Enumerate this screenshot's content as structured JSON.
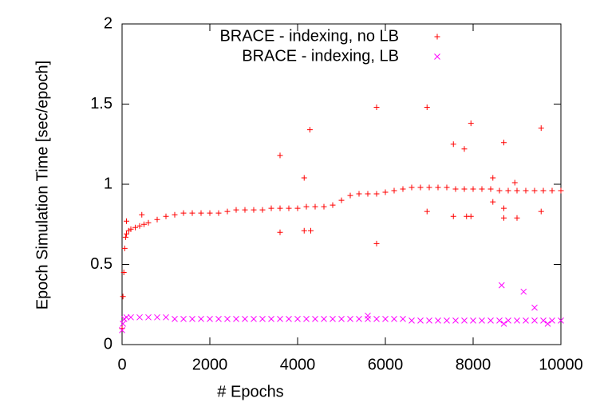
{
  "chart_data": {
    "type": "scatter",
    "x_label": "# Epochs",
    "y_label": "Epoch Simulation Time [sec/epoch]",
    "xlim": [
      0,
      10000
    ],
    "xticks": [
      0,
      2000,
      4000,
      6000,
      8000,
      10000
    ],
    "ylim": [
      0,
      2
    ],
    "yticks": [
      0,
      0.5,
      1,
      1.5,
      2
    ],
    "legend": "top-right",
    "series": [
      {
        "name": "BRACE - indexing, no LB",
        "color": "#ff0000",
        "marker": "plus",
        "x": [
          0,
          20,
          40,
          60,
          80,
          100,
          150,
          200,
          300,
          400,
          500,
          600,
          800,
          1000,
          1200,
          1400,
          1600,
          1800,
          2000,
          2200,
          2400,
          2600,
          2800,
          3000,
          3200,
          3400,
          3600,
          3800,
          4000,
          4200,
          4400,
          4600,
          4800,
          5000,
          5200,
          5400,
          5600,
          5800,
          6000,
          6200,
          6400,
          6600,
          6800,
          7000,
          7200,
          7400,
          7600,
          7800,
          8000,
          8200,
          8400,
          8600,
          8800,
          9000,
          9200,
          9400,
          9600,
          9800,
          10000,
          100,
          450,
          3600,
          3600,
          4150,
          4150,
          4300,
          4280,
          5800,
          5800,
          6950,
          6950,
          7550,
          7550,
          7800,
          7850,
          7950,
          7950,
          8450,
          8450,
          8700,
          8700,
          8700,
          8950,
          9000,
          9550,
          9550
        ],
        "values": [
          0.1,
          0.3,
          0.45,
          0.6,
          0.67,
          0.69,
          0.71,
          0.72,
          0.73,
          0.74,
          0.75,
          0.76,
          0.78,
          0.8,
          0.81,
          0.82,
          0.82,
          0.82,
          0.82,
          0.82,
          0.83,
          0.84,
          0.84,
          0.84,
          0.84,
          0.85,
          0.85,
          0.85,
          0.85,
          0.86,
          0.86,
          0.86,
          0.87,
          0.9,
          0.93,
          0.94,
          0.94,
          0.94,
          0.95,
          0.96,
          0.97,
          0.98,
          0.98,
          0.98,
          0.98,
          0.98,
          0.97,
          0.97,
          0.97,
          0.97,
          0.97,
          0.96,
          0.96,
          0.96,
          0.96,
          0.96,
          0.96,
          0.96,
          0.96,
          0.77,
          0.81,
          1.18,
          0.7,
          1.04,
          0.71,
          0.71,
          1.34,
          1.48,
          0.63,
          1.48,
          0.83,
          1.25,
          0.8,
          1.22,
          0.8,
          1.38,
          0.8,
          1.04,
          0.89,
          1.26,
          0.79,
          0.85,
          1.01,
          0.79,
          1.35,
          0.83
        ]
      },
      {
        "name": "BRACE - indexing, LB",
        "color": "#ff00ff",
        "marker": "cross",
        "x": [
          0,
          20,
          50,
          100,
          200,
          400,
          600,
          800,
          1000,
          1200,
          1400,
          1600,
          1800,
          2000,
          2200,
          2400,
          2600,
          2800,
          3000,
          3200,
          3400,
          3600,
          3800,
          4000,
          4200,
          4400,
          4600,
          4800,
          5000,
          5200,
          5400,
          5600,
          5800,
          6000,
          6200,
          6400,
          6600,
          6800,
          7000,
          7200,
          7400,
          7600,
          7800,
          8000,
          8200,
          8400,
          8600,
          8800,
          9000,
          9200,
          9400,
          9600,
          9800,
          10000,
          8650,
          9150,
          9400,
          8700,
          9700,
          5600
        ],
        "values": [
          0.09,
          0.13,
          0.16,
          0.17,
          0.17,
          0.17,
          0.17,
          0.17,
          0.17,
          0.16,
          0.16,
          0.16,
          0.16,
          0.16,
          0.16,
          0.16,
          0.16,
          0.16,
          0.16,
          0.16,
          0.16,
          0.16,
          0.16,
          0.16,
          0.16,
          0.16,
          0.16,
          0.16,
          0.16,
          0.16,
          0.16,
          0.16,
          0.16,
          0.16,
          0.16,
          0.16,
          0.15,
          0.15,
          0.15,
          0.15,
          0.15,
          0.15,
          0.15,
          0.15,
          0.15,
          0.15,
          0.15,
          0.15,
          0.15,
          0.15,
          0.15,
          0.15,
          0.15,
          0.15,
          0.37,
          0.33,
          0.23,
          0.13,
          0.13,
          0.18
        ]
      }
    ]
  }
}
